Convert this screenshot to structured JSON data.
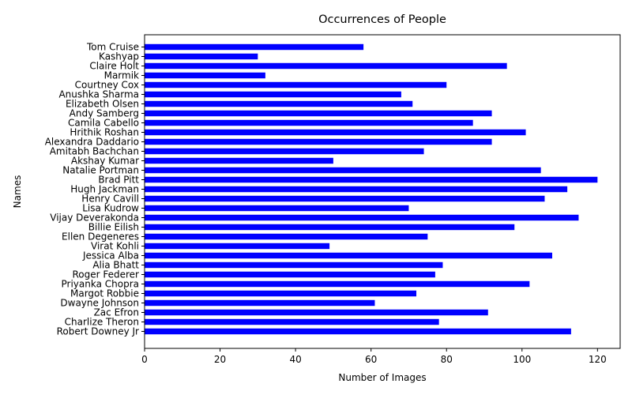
{
  "chart_data": {
    "type": "bar",
    "orientation": "horizontal",
    "title": "Occurrences of People",
    "xlabel": "Number of Images",
    "ylabel": "Names",
    "xlim": [
      0,
      126
    ],
    "xticks": [
      0,
      20,
      40,
      60,
      80,
      100,
      120
    ],
    "grid": false,
    "bar_color": "#0000ff",
    "categories": [
      "Tom Cruise",
      "Kashyap",
      "Claire Holt",
      "Marmik",
      "Courtney Cox",
      "Anushka Sharma",
      "Elizabeth Olsen",
      "Andy Samberg",
      "Camila Cabello",
      "Hrithik Roshan",
      "Alexandra Daddario",
      "Amitabh Bachchan",
      "Akshay Kumar",
      "Natalie Portman",
      "Brad Pitt",
      "Hugh Jackman",
      "Henry Cavill",
      "Lisa Kudrow",
      "Vijay Deverakonda",
      "Billie Eilish",
      "Ellen Degeneres",
      "Virat Kohli",
      "Jessica Alba",
      "Alia Bhatt",
      "Roger Federer",
      "Priyanka Chopra",
      "Margot Robbie",
      "Dwayne Johnson",
      "Zac Efron",
      "Charlize Theron",
      "Robert Downey Jr"
    ],
    "values": [
      58,
      30,
      96,
      32,
      80,
      68,
      71,
      92,
      87,
      101,
      92,
      74,
      50,
      105,
      120,
      112,
      106,
      70,
      115,
      98,
      75,
      49,
      108,
      79,
      77,
      102,
      72,
      61,
      91,
      78,
      113
    ]
  }
}
